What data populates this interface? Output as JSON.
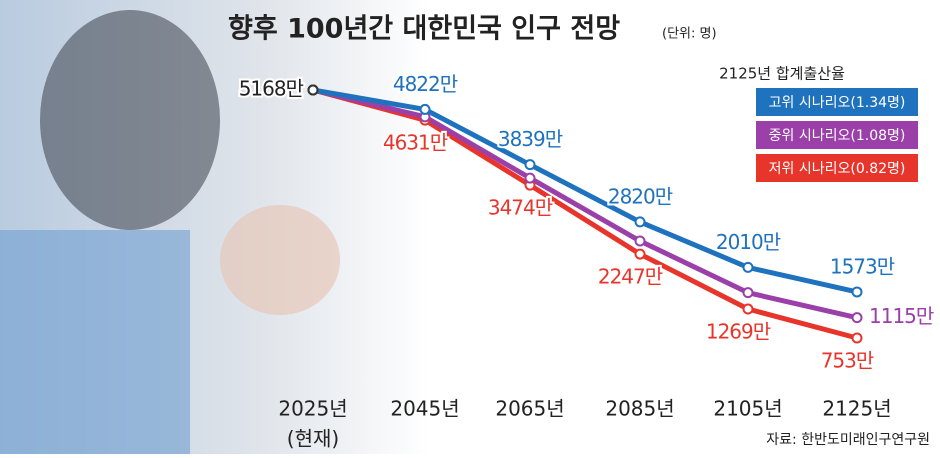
{
  "chart_data": {
    "type": "line",
    "title": "향후 100년간 대한민국 인구 전망",
    "unit": "(단위: 명)",
    "categories": [
      "2025년",
      "2045년",
      "2065년",
      "2085년",
      "2105년",
      "2125년"
    ],
    "category_note": "(현재)",
    "legend_title": "2125년 합계출산율",
    "legend_position": "upper right",
    "source": "자료: 한반도미래인구연구원",
    "series": [
      {
        "name": "고위 시나리오(1.34명)",
        "color": "#1f72bd",
        "values": [
          5168,
          4822,
          3839,
          2820,
          2010,
          1573
        ],
        "value_labels": [
          "5168만",
          "4822만",
          "3839만",
          "2820만",
          "2010만",
          "1573만"
        ]
      },
      {
        "name": "중위 시나리오(1.08명)",
        "color": "#9a40a8",
        "values": [
          5168,
          4690,
          3600,
          2480,
          1560,
          1115
        ],
        "value_labels": [
          null,
          null,
          null,
          null,
          null,
          "1115만"
        ]
      },
      {
        "name": "저위 시나리오(0.82명)",
        "color": "#e8352c",
        "values": [
          5168,
          4631,
          3474,
          2247,
          1269,
          753
        ],
        "value_labels": [
          null,
          "4631만",
          "3474만",
          "2247만",
          "1269만",
          "753만"
        ]
      }
    ]
  }
}
